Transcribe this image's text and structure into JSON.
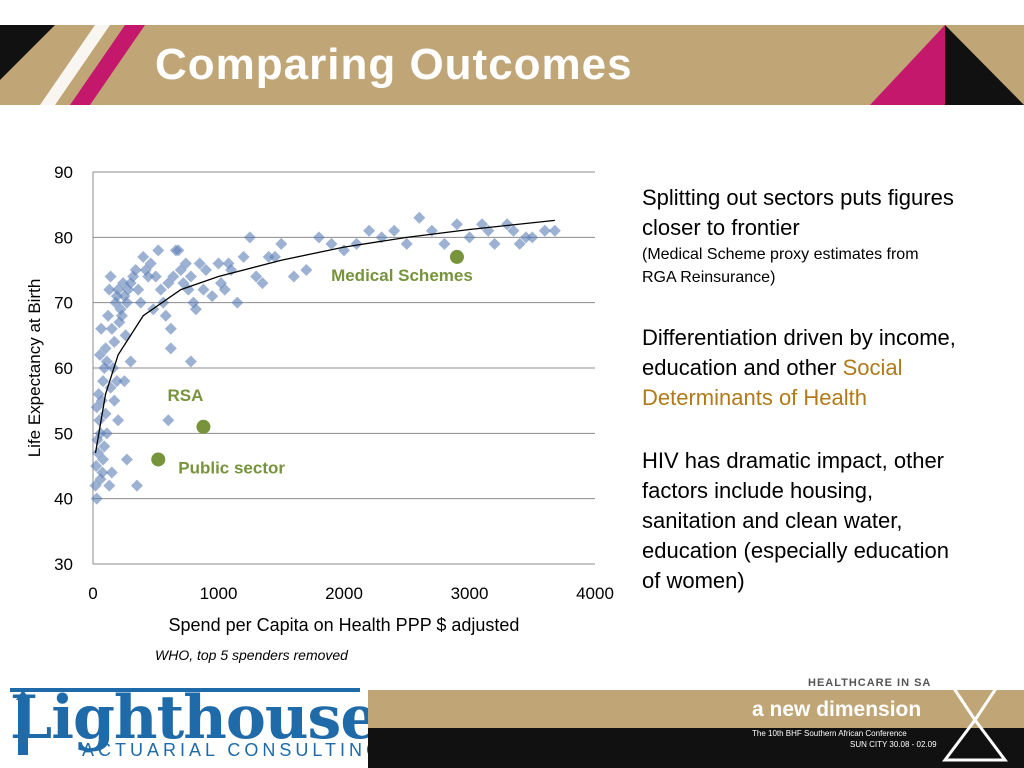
{
  "slide": {
    "title": "Comparing Outcomes",
    "source_note": "WHO, top 5 spenders removed"
  },
  "bullets": {
    "b1_line1": "Splitting out sectors puts figures",
    "b1_line2": "closer to frontier",
    "b1_note1": "(Medical Scheme proxy estimates from",
    "b1_note2": "RGA Reinsurance)",
    "b2_line1": "Differentiation driven by income,",
    "b2_line2a": "education and other",
    "b2_line2b": "Social",
    "b2_line3": "Determinants of Health",
    "b3_line1": "HIV has dramatic impact, other",
    "b3_line2": "factors include housing,",
    "b3_line3": "sanitation and clean water,",
    "b3_line4": "education (especially education",
    "b3_line5": "of women)"
  },
  "footer": {
    "logo_main": "Lighthouse",
    "logo_sub": "ACTUARIAL CONSULTING",
    "banner_tag": "HEALTHCARE IN SA",
    "banner_main": "a new dimension",
    "banner_conf": "The 10th BHF Southern African Conference",
    "banner_dates": "SUN CITY 30.08 - 02.09"
  },
  "colors": {
    "header": "#c0a676",
    "scatter": "#5b7fb5",
    "highlight": "#77933c",
    "accent_text": "#b07a18"
  },
  "chart_data": {
    "type": "scatter",
    "xlabel": "Spend per Capita on Health PPP $ adjusted",
    "ylabel": "Life Expectancy at Birth",
    "xlim": [
      0,
      4000
    ],
    "ylim": [
      30,
      90
    ],
    "xticks": [
      0,
      1000,
      2000,
      3000,
      4000
    ],
    "yticks": [
      30,
      40,
      50,
      60,
      70,
      80,
      90
    ],
    "grid": "horizontal",
    "countries": [
      [
        20,
        42
      ],
      [
        30,
        40
      ],
      [
        25,
        45
      ],
      [
        40,
        47
      ],
      [
        35,
        49
      ],
      [
        50,
        52
      ],
      [
        60,
        50
      ],
      [
        70,
        55
      ],
      [
        45,
        56
      ],
      [
        80,
        58
      ],
      [
        90,
        60
      ],
      [
        30,
        54
      ],
      [
        55,
        62
      ],
      [
        100,
        63
      ],
      [
        65,
        66
      ],
      [
        110,
        61
      ],
      [
        120,
        68
      ],
      [
        130,
        72
      ],
      [
        140,
        74
      ],
      [
        150,
        66
      ],
      [
        60,
        43
      ],
      [
        80,
        46
      ],
      [
        100,
        53
      ],
      [
        160,
        60
      ],
      [
        170,
        64
      ],
      [
        180,
        70
      ],
      [
        190,
        71
      ],
      [
        200,
        72
      ],
      [
        210,
        67
      ],
      [
        220,
        69
      ],
      [
        230,
        68
      ],
      [
        240,
        73
      ],
      [
        250,
        71
      ],
      [
        260,
        65
      ],
      [
        270,
        70
      ],
      [
        280,
        72
      ],
      [
        300,
        73
      ],
      [
        320,
        74
      ],
      [
        340,
        75
      ],
      [
        360,
        72
      ],
      [
        380,
        70
      ],
      [
        400,
        77
      ],
      [
        420,
        75
      ],
      [
        440,
        74
      ],
      [
        460,
        76
      ],
      [
        480,
        69
      ],
      [
        500,
        74
      ],
      [
        520,
        78
      ],
      [
        540,
        72
      ],
      [
        560,
        70
      ],
      [
        580,
        68
      ],
      [
        600,
        73
      ],
      [
        620,
        66
      ],
      [
        640,
        74
      ],
      [
        660,
        78
      ],
      [
        680,
        78
      ],
      [
        700,
        75
      ],
      [
        720,
        73
      ],
      [
        740,
        76
      ],
      [
        760,
        72
      ],
      [
        780,
        74
      ],
      [
        800,
        70
      ],
      [
        820,
        69
      ],
      [
        850,
        76
      ],
      [
        880,
        72
      ],
      [
        900,
        75
      ],
      [
        950,
        71
      ],
      [
        1000,
        76
      ],
      [
        1020,
        73
      ],
      [
        1050,
        72
      ],
      [
        1080,
        76
      ],
      [
        1100,
        75
      ],
      [
        1150,
        70
      ],
      [
        1200,
        77
      ],
      [
        1250,
        80
      ],
      [
        1300,
        74
      ],
      [
        1350,
        73
      ],
      [
        1400,
        77
      ],
      [
        1450,
        77
      ],
      [
        1500,
        79
      ],
      [
        1600,
        74
      ],
      [
        1700,
        75
      ],
      [
        1800,
        80
      ],
      [
        1900,
        79
      ],
      [
        2000,
        78
      ],
      [
        2100,
        79
      ],
      [
        2200,
        81
      ],
      [
        2300,
        80
      ],
      [
        2400,
        81
      ],
      [
        2500,
        79
      ],
      [
        2600,
        83
      ],
      [
        2700,
        81
      ],
      [
        2800,
        79
      ],
      [
        2900,
        82
      ],
      [
        3000,
        80
      ],
      [
        3100,
        82
      ],
      [
        3150,
        81
      ],
      [
        3200,
        79
      ],
      [
        3300,
        82
      ],
      [
        3350,
        81
      ],
      [
        3400,
        79
      ],
      [
        3450,
        80
      ],
      [
        3500,
        80
      ],
      [
        3600,
        81
      ],
      [
        3680,
        81
      ],
      [
        300,
        61
      ],
      [
        250,
        58
      ],
      [
        200,
        52
      ],
      [
        130,
        42
      ],
      [
        150,
        44
      ],
      [
        350,
        42
      ],
      [
        270,
        46
      ],
      [
        600,
        52
      ],
      [
        620,
        63
      ],
      [
        780,
        61
      ],
      [
        110,
        50
      ],
      [
        90,
        48
      ],
      [
        75,
        44
      ],
      [
        140,
        57
      ],
      [
        170,
        55
      ],
      [
        190,
        58
      ]
    ],
    "trendline": [
      [
        20,
        47
      ],
      [
        100,
        56
      ],
      [
        200,
        62
      ],
      [
        400,
        68
      ],
      [
        700,
        72
      ],
      [
        1000,
        74
      ],
      [
        1500,
        76.5
      ],
      [
        2000,
        78.5
      ],
      [
        2500,
        80
      ],
      [
        3000,
        81.2
      ],
      [
        3680,
        82.6
      ]
    ],
    "highlights": [
      {
        "label": "Medical Schemes",
        "x": 2900,
        "y": 77
      },
      {
        "label": "RSA",
        "x": 880,
        "y": 51
      },
      {
        "label": "Public sector",
        "x": 520,
        "y": 46
      }
    ]
  }
}
